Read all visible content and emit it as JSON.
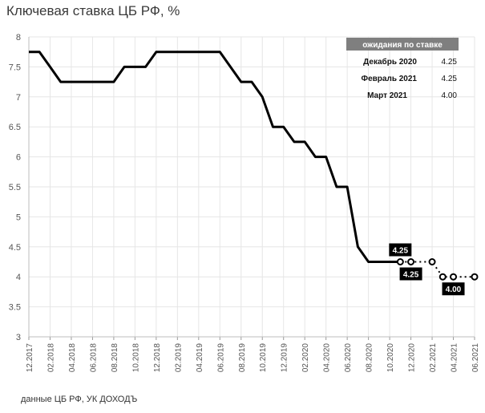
{
  "title": "Ключевая ставка ЦБ РФ, %",
  "source": "данные ЦБ РФ, УК ДОХОДЪ",
  "expectations": {
    "header": "ожидания по ставке",
    "rows": [
      {
        "label": "Декабрь 2020",
        "value": "4.25"
      },
      {
        "label": "Февраль 2021",
        "value": "4.25"
      },
      {
        "label": "Март 2021",
        "value": "4.00"
      }
    ]
  },
  "chart_data": {
    "type": "line",
    "title": "Ключевая ставка ЦБ РФ, %",
    "xlabel": "",
    "ylabel": "",
    "ylim": [
      3,
      8
    ],
    "yticks": [
      3,
      3.5,
      4,
      4.5,
      5,
      5.5,
      6,
      6.5,
      7,
      7.5,
      8
    ],
    "xrange": [
      "12.2017",
      "06.2021"
    ],
    "xticks": [
      "12.2017",
      "02.2018",
      "04.2018",
      "06.2018",
      "08.2018",
      "10.2018",
      "12.2018",
      "02.2019",
      "04.2019",
      "06.2019",
      "08.2019",
      "10.2019",
      "12.2019",
      "02.2020",
      "04.2020",
      "06.2020",
      "08.2020",
      "10.2020",
      "12.2020",
      "02.2021",
      "04.2021",
      "06.2021"
    ],
    "grid": true,
    "series": [
      {
        "name": "",
        "style": "solid",
        "points": [
          [
            "12.2017",
            7.75
          ],
          [
            "01.2018",
            7.75
          ],
          [
            "02.2018",
            7.5
          ],
          [
            "03.2018",
            7.25
          ],
          [
            "04.2018",
            7.25
          ],
          [
            "05.2018",
            7.25
          ],
          [
            "06.2018",
            7.25
          ],
          [
            "07.2018",
            7.25
          ],
          [
            "08.2018",
            7.25
          ],
          [
            "09.2018",
            7.5
          ],
          [
            "10.2018",
            7.5
          ],
          [
            "11.2018",
            7.5
          ],
          [
            "12.2018",
            7.75
          ],
          [
            "01.2019",
            7.75
          ],
          [
            "02.2019",
            7.75
          ],
          [
            "03.2019",
            7.75
          ],
          [
            "04.2019",
            7.75
          ],
          [
            "05.2019",
            7.75
          ],
          [
            "06.2019",
            7.75
          ],
          [
            "07.2019",
            7.5
          ],
          [
            "08.2019",
            7.25
          ],
          [
            "09.2019",
            7.25
          ],
          [
            "10.2019",
            7.0
          ],
          [
            "11.2019",
            6.5
          ],
          [
            "12.2019",
            6.5
          ],
          [
            "01.2020",
            6.25
          ],
          [
            "02.2020",
            6.25
          ],
          [
            "03.2020",
            6.0
          ],
          [
            "04.2020",
            6.0
          ],
          [
            "05.2020",
            5.5
          ],
          [
            "06.2020",
            5.5
          ],
          [
            "07.2020",
            4.5
          ],
          [
            "08.2020",
            4.25
          ],
          [
            "09.2020",
            4.25
          ],
          [
            "10.2020",
            4.25
          ],
          [
            "11.2020",
            4.25
          ]
        ]
      },
      {
        "name": "",
        "style": "dotted",
        "points": [
          [
            "11.2020",
            4.25
          ],
          [
            "12.2020",
            4.25
          ],
          [
            "01.2021",
            4.25
          ],
          [
            "02.2021",
            4.25
          ],
          [
            "03.2021",
            4.0
          ],
          [
            "04.2021",
            4.0
          ],
          [
            "06.2021",
            4.0
          ]
        ],
        "markers": [
          [
            "11.2020",
            4.25
          ],
          [
            "12.2020",
            4.25
          ],
          [
            "02.2021",
            4.25
          ],
          [
            "03.2021",
            4.0
          ],
          [
            "04.2021",
            4.0
          ],
          [
            "06.2021",
            4.0
          ]
        ]
      }
    ],
    "annotations": [
      {
        "text": "4.25",
        "x": "11.2020",
        "y": 4.25,
        "place": "above"
      },
      {
        "text": "4.25",
        "x": "12.2020",
        "y": 4.25,
        "place": "below"
      },
      {
        "text": "4.00",
        "x": "04.2021",
        "y": 4.0,
        "place": "below"
      }
    ]
  }
}
